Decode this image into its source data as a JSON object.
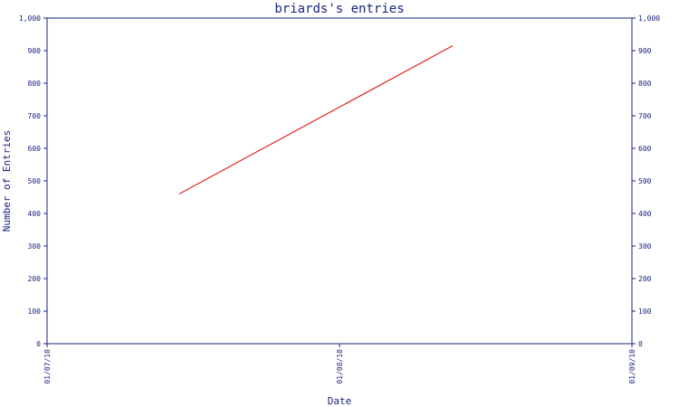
{
  "chart_data": {
    "type": "line",
    "title": "briards's entries",
    "xlabel": "Date",
    "ylabel": "Number of Entries",
    "x_ticks": [
      "01/07/10",
      "01/08/10",
      "01/09/10"
    ],
    "y_ticks": [
      "0",
      "100",
      "200",
      "300",
      "400",
      "500",
      "600",
      "700",
      "800",
      "900",
      "1,000"
    ],
    "ylim": [
      0,
      1000
    ],
    "xlim": [
      "01/07/10",
      "01/09/10"
    ],
    "grid": false,
    "series": [
      {
        "color": "#e00000",
        "points": [
          {
            "x": "2010-07-15",
            "y": 460
          },
          {
            "x": "2010-08-13",
            "y": 915
          }
        ]
      }
    ]
  }
}
